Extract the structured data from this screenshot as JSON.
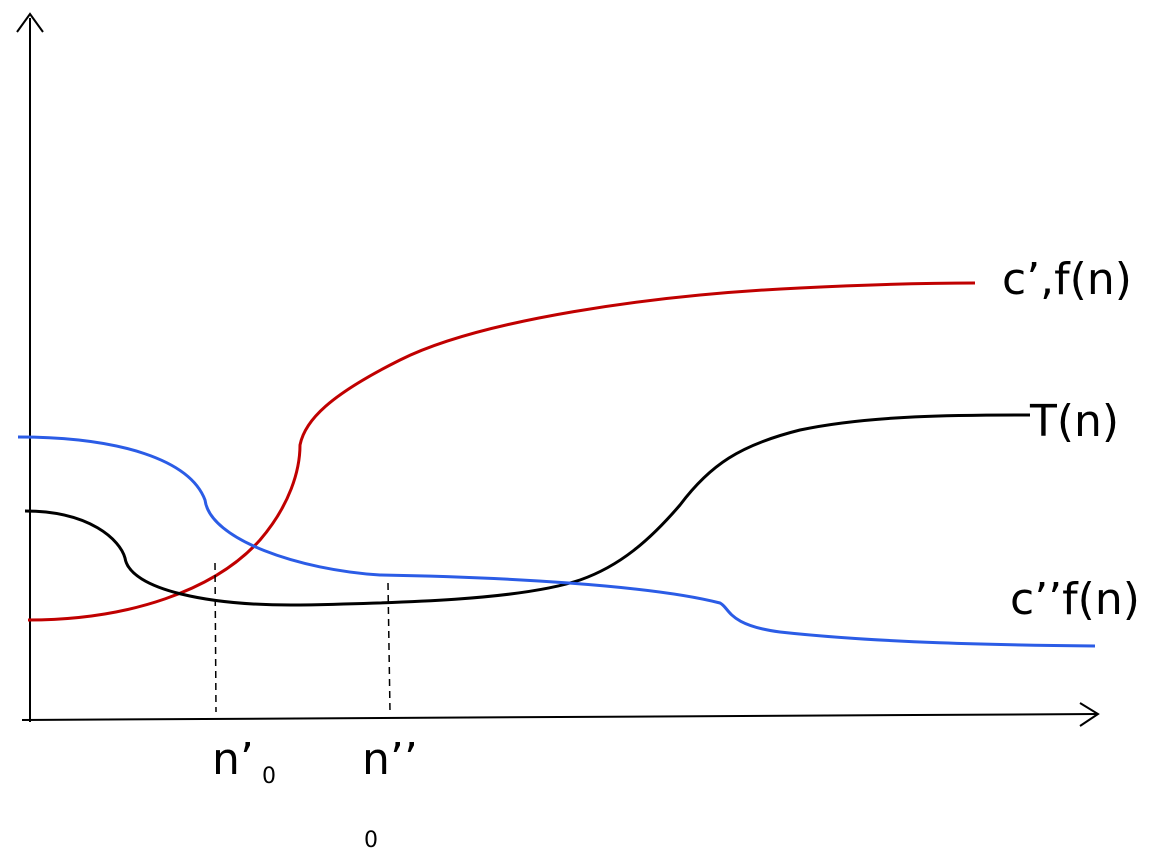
{
  "labels": {
    "red_curve": "c’,f(n)",
    "black_curve": "T(n)",
    "blue_curve": "c’’f(n)",
    "n0_prime_main": "n’",
    "n0_prime_sub": "0",
    "n0_dprime_main": "n’’",
    "n0_dprime_sub": "0"
  },
  "colors": {
    "red_curve": "#c00000",
    "black_curve": "#000000",
    "blue_curve": "#2b5ce6",
    "axes": "#000000"
  }
}
